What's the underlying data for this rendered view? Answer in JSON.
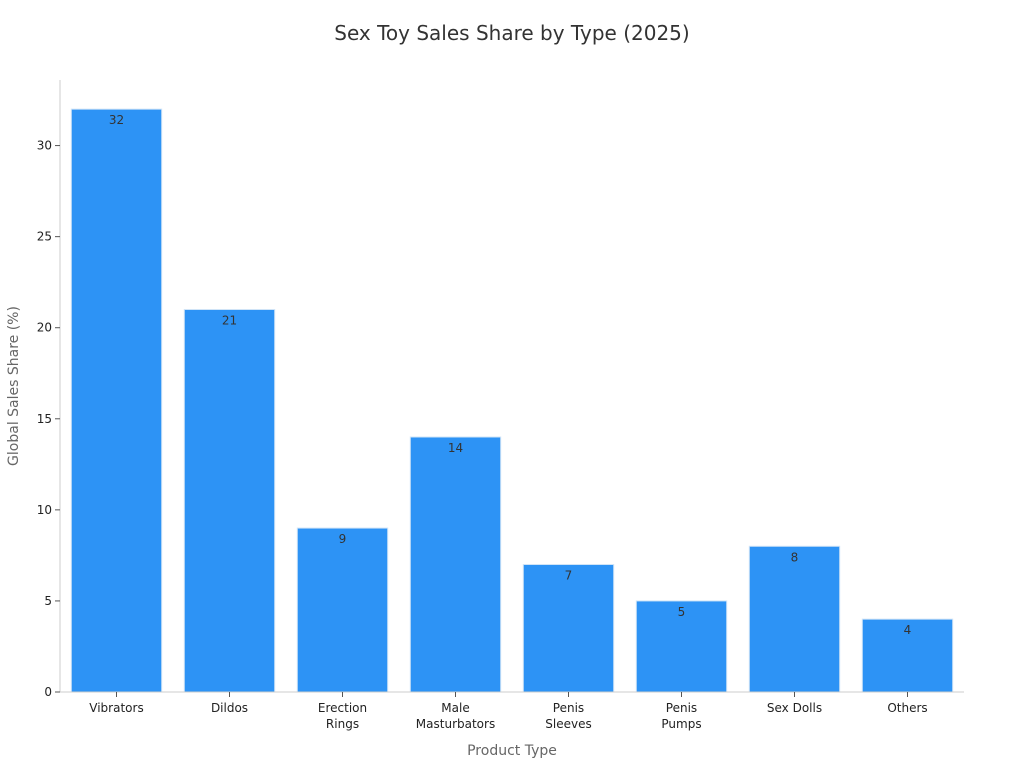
{
  "chart_data": {
    "type": "bar",
    "title": "Sex Toy Sales Share by Type (2025)",
    "xlabel": "Product Type",
    "ylabel": "Global Sales Share (%)",
    "categories": [
      [
        "Vibrators"
      ],
      [
        "Dildos"
      ],
      [
        "Erection",
        "Rings"
      ],
      [
        "Male",
        "Masturbators"
      ],
      [
        "Penis",
        "Sleeves"
      ],
      [
        "Penis",
        "Pumps"
      ],
      [
        "Sex Dolls"
      ],
      [
        "Others"
      ]
    ],
    "values": [
      32,
      21,
      9,
      14,
      7,
      5,
      8,
      4
    ],
    "ylim": [
      0,
      33.6
    ],
    "yticks": [
      0,
      5,
      10,
      15,
      20,
      25,
      30
    ],
    "bar_color": "#2d93f5",
    "grid": false,
    "legend": "none",
    "data_labels": true
  }
}
